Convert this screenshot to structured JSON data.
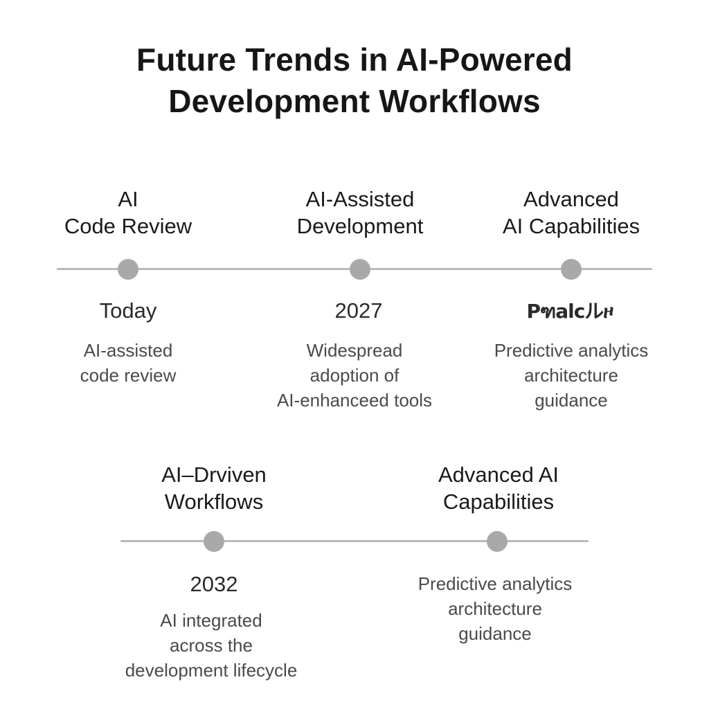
{
  "title": {
    "line1": "Future Trends in AI-Powered",
    "line2": "Development Workflows"
  },
  "timeline_top": {
    "milestones": [
      {
        "heading": [
          "AI",
          "Code Review"
        ],
        "date": "Today",
        "description": [
          "AI-assisted",
          "code review"
        ]
      },
      {
        "heading": [
          "AI-Assisted",
          "Development"
        ],
        "date": "2027",
        "description": [
          "Widespread",
          "adoption of",
          "AI-enhanceed tools"
        ]
      },
      {
        "heading": [
          "Advanced",
          "AI Capabilities"
        ],
        "date": "Pฑalcルዞ",
        "description": [
          "Predictive analytics",
          "architecture",
          "guidance"
        ]
      }
    ]
  },
  "timeline_bottom": {
    "milestones": [
      {
        "heading": [
          "AI–Drviven",
          "Workflows"
        ],
        "date": "2032",
        "description": [
          "AI integrated",
          "across the",
          "development lifecycle"
        ]
      },
      {
        "heading": [
          "Advanced AI",
          "Capabilities"
        ],
        "date": "",
        "description": [
          "Predictive analytics",
          "architecture",
          "guidance"
        ]
      }
    ]
  },
  "colors": {
    "line": "#b9b9b9",
    "node": "#a9a9a9",
    "text": "#1a1a1a",
    "description": "#4a4a4a"
  }
}
